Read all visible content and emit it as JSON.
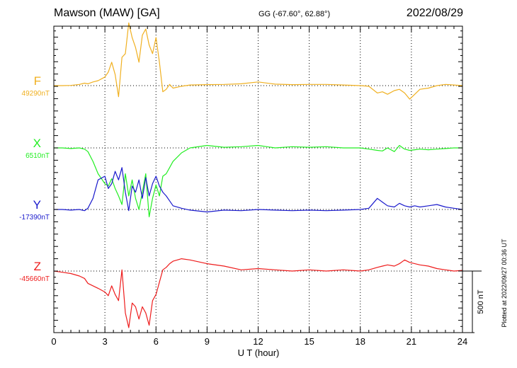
{
  "header": {
    "station": "Mawson (MAW)  [GA]",
    "coords": "GG (-67.60°,  62.88°)",
    "date": "2022/08/29"
  },
  "footer": {
    "plotted": "Plotted at 2022/09/27 00:36 UT"
  },
  "colors": {
    "F": "#f0b020",
    "X": "#22ee22",
    "Y": "#1a1acc",
    "Z": "#ee1c1c",
    "axis": "#000000"
  },
  "chart_data": {
    "type": "line",
    "title": "",
    "xlabel": "U T (hour)",
    "ylabel": "",
    "xlim": [
      0,
      24
    ],
    "x_ticks": [
      0,
      3,
      6,
      9,
      12,
      15,
      18,
      21,
      24
    ],
    "x_tick_labels": [
      "0",
      "3",
      "6",
      "9",
      "12",
      "15",
      "18",
      "21",
      "24"
    ],
    "grid": true,
    "scale_bar": {
      "value": 500,
      "label": "500 nT"
    },
    "series": [
      {
        "name": "F",
        "baseline_label": "49290nT",
        "baseline_nT": 49290,
        "x": [
          0,
          0.5,
          1,
          1.5,
          1.8,
          2,
          2.3,
          2.6,
          3,
          3.2,
          3.4,
          3.6,
          3.8,
          4,
          4.2,
          4.4,
          4.6,
          4.8,
          5,
          5.2,
          5.4,
          5.6,
          5.8,
          6,
          6.2,
          6.4,
          6.6,
          6.8,
          7,
          7.5,
          8,
          9,
          10,
          11,
          12,
          13,
          14,
          15,
          16,
          17,
          18,
          18.5,
          19,
          19.3,
          19.6,
          20,
          20.3,
          20.6,
          20.9,
          21.2,
          21.5,
          22,
          22.5,
          23,
          23.5,
          24
        ],
        "y": [
          49290,
          49290,
          49292,
          49300,
          49310,
          49305,
          49320,
          49330,
          49360,
          49400,
          49480,
          49380,
          49200,
          49520,
          49550,
          49800,
          49680,
          49600,
          49480,
          49700,
          49750,
          49620,
          49550,
          49680,
          49480,
          49240,
          49260,
          49300,
          49270,
          49285,
          49295,
          49298,
          49300,
          49305,
          49320,
          49302,
          49298,
          49300,
          49300,
          49295,
          49290,
          49285,
          49230,
          49240,
          49220,
          49250,
          49260,
          49230,
          49180,
          49220,
          49260,
          49270,
          49290,
          49300,
          49295,
          49290
        ]
      },
      {
        "name": "X",
        "baseline_label": "6510nT",
        "baseline_nT": 6510,
        "x": [
          0,
          0.5,
          1,
          1.5,
          1.8,
          2,
          2.3,
          2.6,
          3,
          3.2,
          3.4,
          3.6,
          3.8,
          4,
          4.2,
          4.4,
          4.6,
          4.8,
          5,
          5.2,
          5.4,
          5.6,
          5.8,
          6,
          6.2,
          6.4,
          6.6,
          6.8,
          7,
          7.5,
          8,
          9,
          10,
          11,
          12,
          13,
          14,
          15,
          16,
          17,
          18,
          18.5,
          19,
          19.3,
          19.6,
          20,
          20.3,
          20.6,
          20.9,
          21.2,
          21.5,
          22,
          22.5,
          23,
          23.5,
          24
        ],
        "y": [
          6510,
          6510,
          6505,
          6510,
          6500,
          6480,
          6400,
          6300,
          6220,
          6200,
          6260,
          6180,
          6120,
          6050,
          6300,
          6120,
          6250,
          6100,
          6010,
          6150,
          6300,
          5950,
          6100,
          6210,
          6120,
          6280,
          6300,
          6350,
          6400,
          6470,
          6510,
          6530,
          6515,
          6520,
          6530,
          6510,
          6520,
          6515,
          6520,
          6510,
          6510,
          6500,
          6490,
          6485,
          6510,
          6480,
          6530,
          6500,
          6490,
          6495,
          6500,
          6495,
          6500,
          6505,
          6510,
          6510
        ]
      },
      {
        "name": "Y",
        "baseline_label": "-17390nT",
        "baseline_nT": -17390,
        "x": [
          0,
          0.5,
          1,
          1.5,
          1.8,
          2,
          2.3,
          2.6,
          3,
          3.2,
          3.4,
          3.6,
          3.8,
          4,
          4.2,
          4.4,
          4.6,
          4.8,
          5,
          5.2,
          5.4,
          5.6,
          5.8,
          6,
          6.2,
          6.4,
          6.6,
          6.8,
          7,
          7.5,
          8,
          9,
          10,
          11,
          12,
          13,
          14,
          15,
          16,
          17,
          18,
          18.5,
          19,
          19.3,
          19.6,
          20,
          20.3,
          20.6,
          20.9,
          21.2,
          21.5,
          22,
          22.5,
          23,
          23.5,
          24
        ],
        "y": [
          -17390,
          -17390,
          -17395,
          -17390,
          -17400,
          -17380,
          -17300,
          -17150,
          -17120,
          -17220,
          -17180,
          -17080,
          -17150,
          -17050,
          -17250,
          -17400,
          -17200,
          -17250,
          -17150,
          -17300,
          -17130,
          -17280,
          -17180,
          -17120,
          -17200,
          -17250,
          -17280,
          -17320,
          -17360,
          -17380,
          -17395,
          -17410,
          -17395,
          -17400,
          -17390,
          -17395,
          -17400,
          -17395,
          -17400,
          -17395,
          -17390,
          -17380,
          -17300,
          -17330,
          -17360,
          -17370,
          -17340,
          -17360,
          -17370,
          -17360,
          -17370,
          -17360,
          -17350,
          -17370,
          -17380,
          -17390
        ]
      },
      {
        "name": "Z",
        "baseline_label": "-45660nT",
        "baseline_nT": -45660,
        "x": [
          0,
          0.5,
          1,
          1.5,
          1.8,
          2,
          2.3,
          2.6,
          3,
          3.2,
          3.4,
          3.6,
          3.8,
          4,
          4.2,
          4.4,
          4.6,
          4.8,
          5,
          5.2,
          5.4,
          5.6,
          5.8,
          6,
          6.2,
          6.4,
          6.6,
          6.8,
          7,
          7.5,
          8,
          9,
          10,
          11,
          12,
          13,
          14,
          15,
          16,
          17,
          18,
          18.5,
          19,
          19.3,
          19.6,
          20,
          20.3,
          20.6,
          20.9,
          21.2,
          21.5,
          22,
          22.5,
          23,
          23.5,
          24
        ],
        "y": [
          -45660,
          -45670,
          -45680,
          -45700,
          -45720,
          -45760,
          -45780,
          -45800,
          -45830,
          -45860,
          -45780,
          -45850,
          -45900,
          -45650,
          -46000,
          -46120,
          -45920,
          -45950,
          -46050,
          -45950,
          -46000,
          -46100,
          -45900,
          -45850,
          -45750,
          -45650,
          -45630,
          -45600,
          -45580,
          -45560,
          -45570,
          -45600,
          -45620,
          -45650,
          -45640,
          -45650,
          -45660,
          -45650,
          -45660,
          -45650,
          -45660,
          -45650,
          -45630,
          -45620,
          -45610,
          -45620,
          -45600,
          -45570,
          -45590,
          -45600,
          -45610,
          -45620,
          -45640,
          -45650,
          -45660,
          -45655
        ]
      }
    ]
  }
}
